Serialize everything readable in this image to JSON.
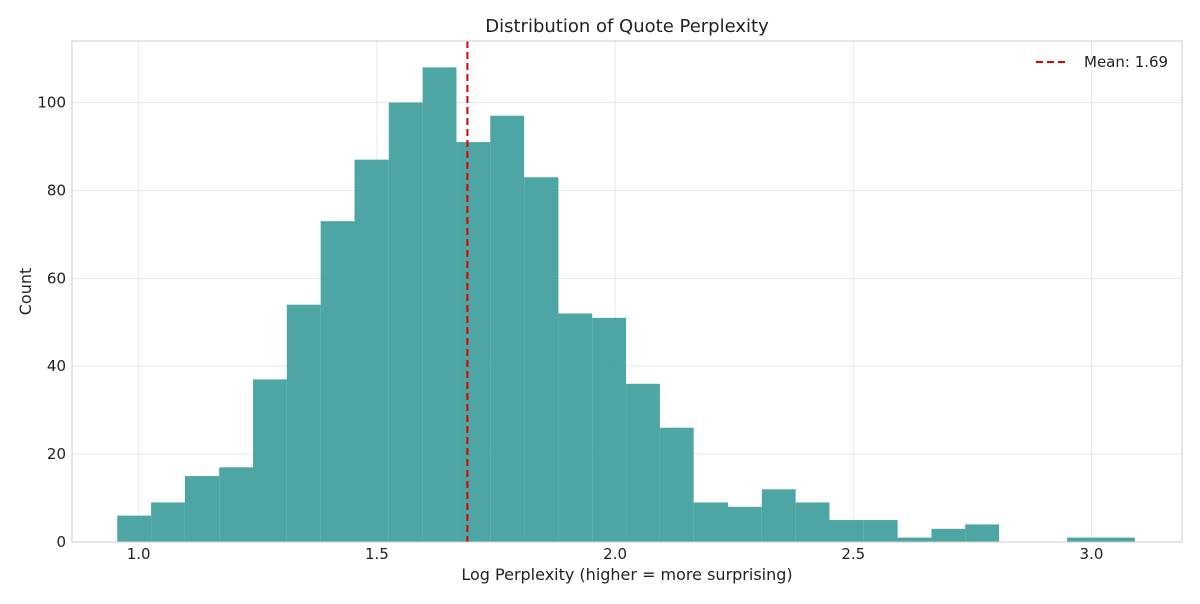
{
  "chart_data": {
    "type": "bar",
    "title": "Distribution of Quote Perplexity",
    "xlabel": "Log Perplexity (higher = more surprising)",
    "ylabel": "Count",
    "xlim": [
      0.86,
      3.19
    ],
    "ylim": [
      0,
      114
    ],
    "xticks": [
      1.0,
      1.5,
      2.0,
      2.5,
      3.0
    ],
    "xtick_labels": [
      "1.0",
      "1.5",
      "2.0",
      "2.5",
      "3.0"
    ],
    "yticks": [
      0,
      20,
      40,
      60,
      80,
      100
    ],
    "ytick_labels": [
      "0",
      "20",
      "40",
      "60",
      "80",
      "100"
    ],
    "grid": true,
    "bar_color": "#3a9c9a",
    "bins": [
      {
        "x0": 0.955,
        "x1": 1.026,
        "count": 6
      },
      {
        "x0": 1.026,
        "x1": 1.097,
        "count": 9
      },
      {
        "x0": 1.097,
        "x1": 1.169,
        "count": 15
      },
      {
        "x0": 1.169,
        "x1": 1.24,
        "count": 17
      },
      {
        "x0": 1.24,
        "x1": 1.311,
        "count": 37
      },
      {
        "x0": 1.311,
        "x1": 1.382,
        "count": 54
      },
      {
        "x0": 1.382,
        "x1": 1.453,
        "count": 73
      },
      {
        "x0": 1.453,
        "x1": 1.525,
        "count": 87
      },
      {
        "x0": 1.525,
        "x1": 1.596,
        "count": 100
      },
      {
        "x0": 1.596,
        "x1": 1.667,
        "count": 108
      },
      {
        "x0": 1.667,
        "x1": 1.738,
        "count": 91
      },
      {
        "x0": 1.738,
        "x1": 1.809,
        "count": 97
      },
      {
        "x0": 1.809,
        "x1": 1.881,
        "count": 83
      },
      {
        "x0": 1.881,
        "x1": 1.952,
        "count": 52
      },
      {
        "x0": 1.952,
        "x1": 2.023,
        "count": 51
      },
      {
        "x0": 2.023,
        "x1": 2.094,
        "count": 36
      },
      {
        "x0": 2.094,
        "x1": 2.165,
        "count": 26
      },
      {
        "x0": 2.165,
        "x1": 2.237,
        "count": 9
      },
      {
        "x0": 2.237,
        "x1": 2.308,
        "count": 8
      },
      {
        "x0": 2.308,
        "x1": 2.379,
        "count": 12
      },
      {
        "x0": 2.379,
        "x1": 2.45,
        "count": 9
      },
      {
        "x0": 2.45,
        "x1": 2.521,
        "count": 5
      },
      {
        "x0": 2.521,
        "x1": 2.593,
        "count": 5
      },
      {
        "x0": 2.593,
        "x1": 2.664,
        "count": 1
      },
      {
        "x0": 2.664,
        "x1": 2.735,
        "count": 3
      },
      {
        "x0": 2.735,
        "x1": 2.806,
        "count": 4
      },
      {
        "x0": 2.806,
        "x1": 2.877,
        "count": 0
      },
      {
        "x0": 2.877,
        "x1": 2.949,
        "count": 0
      },
      {
        "x0": 2.949,
        "x1": 3.02,
        "count": 1
      },
      {
        "x0": 3.02,
        "x1": 3.091,
        "count": 1
      }
    ],
    "mean_line": {
      "value": 1.69,
      "label": "Mean: 1.69",
      "color": "#dd0000"
    },
    "legend_position": "top-right"
  }
}
